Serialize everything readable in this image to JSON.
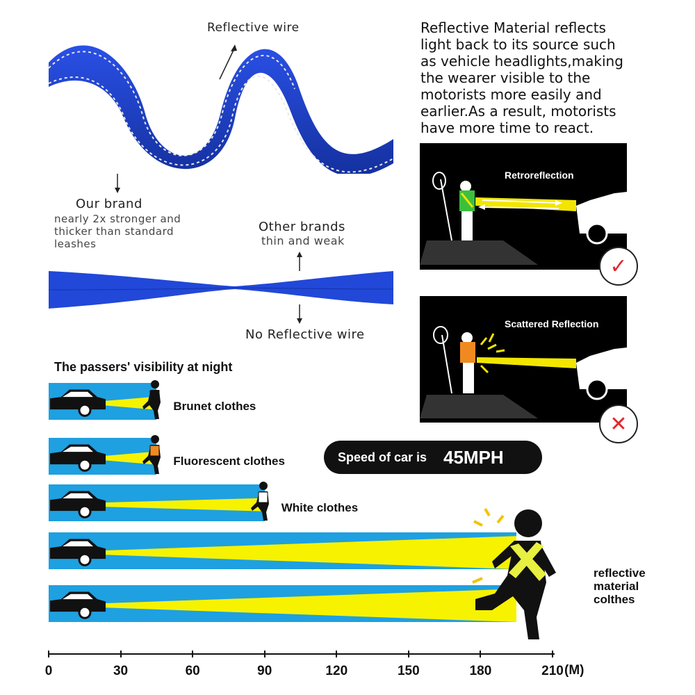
{
  "leash": {
    "reflective_wire_label": "Reflective wire",
    "our_brand_title": "Our brand",
    "our_brand_desc_1": "nearly 2x stronger and",
    "our_brand_desc_2": "thicker than standard",
    "our_brand_desc_3": "leashes",
    "other_brands_title": "Other brands",
    "other_brands_desc": "thin and weak",
    "no_reflective_label": "No Reflective wire",
    "color": "#1c3fd0"
  },
  "explanation": {
    "line1": "Reflective Material reflects",
    "line2": "light back to its source such",
    "line3": "as vehicle headlights,making",
    "line4": "the wearer visible to the",
    "line5": "motorists more easily and",
    "line6": "earlier.As a result, motorists",
    "line7": "have more time to react."
  },
  "panels": [
    {
      "title": "Retroreflection",
      "mark": "✓"
    },
    {
      "title": "Scattered Reflection",
      "mark": "✕"
    }
  ],
  "visibility": {
    "title": "The passers' visibility at night",
    "speed_label": "Speed of car is",
    "speed_value": "45MPH",
    "rows": [
      {
        "label": "Brunet clothes",
        "distance_m": 45
      },
      {
        "label": "Fluorescent clothes",
        "distance_m": 45
      },
      {
        "label": "White clothes",
        "distance_m": 90
      },
      {
        "label": "",
        "distance_m": 195
      },
      {
        "label": "",
        "distance_m": 195
      }
    ],
    "reflective_label_1": "reflective",
    "reflective_label_2": "material",
    "reflective_label_3": "colthes",
    "axis_ticks": [
      "0",
      "30",
      "60",
      "90",
      "120",
      "150",
      "180",
      "210"
    ],
    "axis_unit": "(M)",
    "bar_color": "#1fa0e0",
    "beam_color": "#f7f200"
  }
}
